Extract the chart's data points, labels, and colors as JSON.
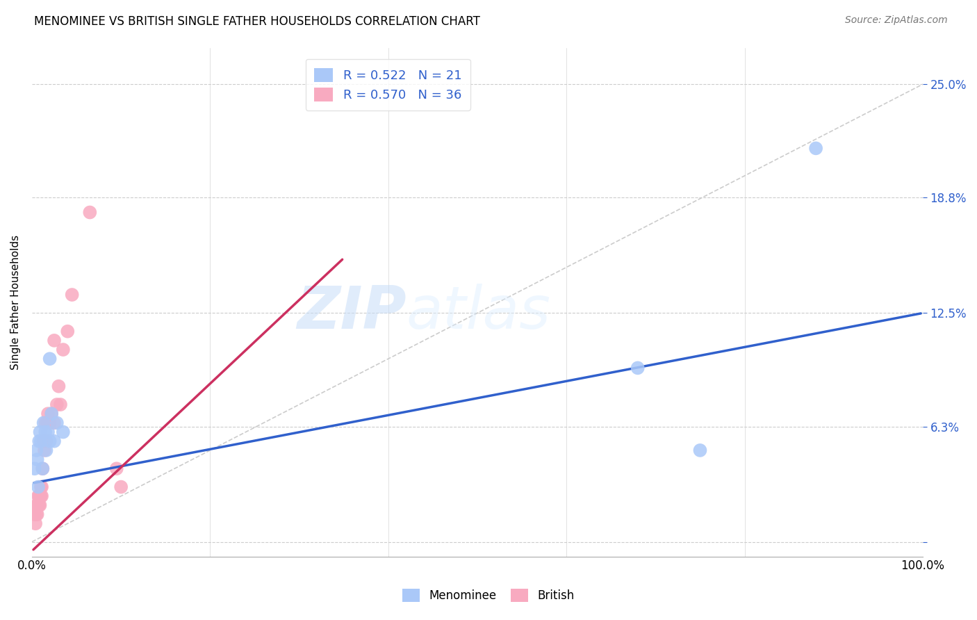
{
  "title": "MENOMINEE VS BRITISH SINGLE FATHER HOUSEHOLDS CORRELATION CHART",
  "source": "Source: ZipAtlas.com",
  "ylabel": "Single Father Households",
  "xmin": 0.0,
  "xmax": 1.0,
  "ymin": -0.008,
  "ymax": 0.27,
  "yticks": [
    0.0,
    0.063,
    0.125,
    0.188,
    0.25
  ],
  "ytick_labels": [
    "",
    "6.3%",
    "12.5%",
    "18.8%",
    "25.0%"
  ],
  "xtick_labels": [
    "0.0%",
    "100.0%"
  ],
  "xticks": [
    0.0,
    1.0
  ],
  "grid_color": "#cccccc",
  "background_color": "#ffffff",
  "menominee_color": "#aac8f8",
  "british_color": "#f8aac0",
  "menominee_line_color": "#3060cc",
  "british_line_color": "#cc3060",
  "diagonal_color": "#cccccc",
  "legend_R_menominee": "0.522",
  "legend_N_menominee": "21",
  "legend_R_british": "0.570",
  "legend_N_british": "36",
  "watermark_zip": "ZIP",
  "watermark_atlas": "atlas",
  "menominee_x": [
    0.003,
    0.005,
    0.006,
    0.007,
    0.008,
    0.009,
    0.01,
    0.012,
    0.013,
    0.015,
    0.016,
    0.018,
    0.02,
    0.022,
    0.025,
    0.028,
    0.035,
    0.68,
    0.75,
    0.88,
    0.02
  ],
  "menominee_y": [
    0.04,
    0.05,
    0.045,
    0.03,
    0.055,
    0.06,
    0.055,
    0.04,
    0.065,
    0.06,
    0.05,
    0.06,
    0.055,
    0.07,
    0.055,
    0.065,
    0.06,
    0.095,
    0.05,
    0.215,
    0.1
  ],
  "british_x": [
    0.003,
    0.004,
    0.005,
    0.005,
    0.006,
    0.006,
    0.007,
    0.007,
    0.008,
    0.008,
    0.009,
    0.009,
    0.01,
    0.01,
    0.011,
    0.011,
    0.012,
    0.013,
    0.014,
    0.015,
    0.016,
    0.017,
    0.018,
    0.02,
    0.022,
    0.025,
    0.025,
    0.028,
    0.03,
    0.032,
    0.035,
    0.04,
    0.045,
    0.065,
    0.095,
    0.1
  ],
  "british_y": [
    0.015,
    0.01,
    0.02,
    0.015,
    0.02,
    0.015,
    0.025,
    0.02,
    0.025,
    0.02,
    0.025,
    0.02,
    0.03,
    0.025,
    0.03,
    0.025,
    0.04,
    0.055,
    0.05,
    0.065,
    0.055,
    0.065,
    0.07,
    0.065,
    0.07,
    0.065,
    0.11,
    0.075,
    0.085,
    0.075,
    0.105,
    0.115,
    0.135,
    0.18,
    0.04,
    0.03
  ],
  "menominee_line_x0": 0.0,
  "menominee_line_y0": 0.032,
  "menominee_line_x1": 1.0,
  "menominee_line_y1": 0.125,
  "british_line_x0": 0.0,
  "british_line_y0": -0.005,
  "british_line_x1": 0.35,
  "british_line_y1": 0.155
}
